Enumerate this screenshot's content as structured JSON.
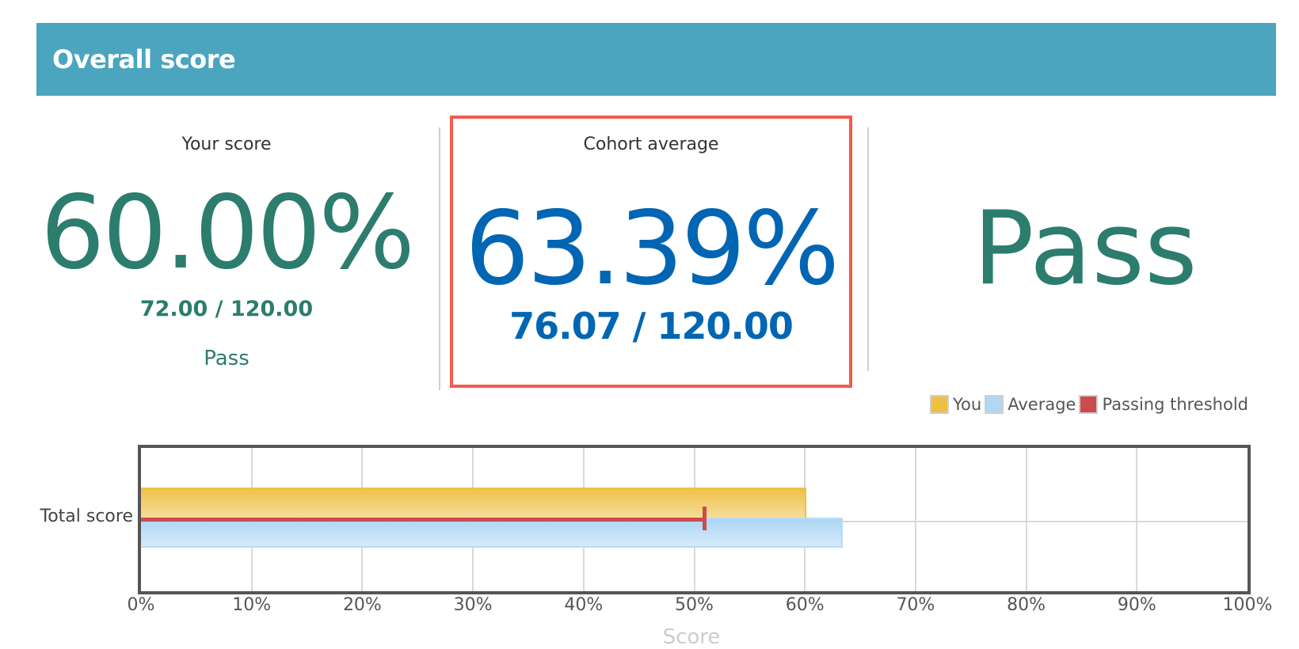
{
  "header": {
    "title": "Overall score"
  },
  "your_score": {
    "label": "Your score",
    "percent": "60.00%",
    "fraction": "72.00 / 120.00",
    "status": "Pass"
  },
  "cohort_average": {
    "label": "Cohort average",
    "percent": "63.39%",
    "fraction": "76.07 / 120.00"
  },
  "result": {
    "status": "Pass"
  },
  "colors": {
    "header": "#4BA5BE",
    "you": "#EEC043",
    "average": "#B0D8F5",
    "threshold": "#CC4B4B",
    "highlight_box": "#F45B4E",
    "your_score_text": "#2C7D6E",
    "cohort_text": "#0066B3"
  },
  "legend": [
    {
      "label": "You",
      "color": "#EEC043"
    },
    {
      "label": "Average",
      "color": "#B0D8F5"
    },
    {
      "label": "Passing threshold",
      "color": "#CC4B4B"
    }
  ],
  "chart_data": {
    "type": "bar",
    "orientation": "horizontal",
    "title": "",
    "categories": [
      "Total score"
    ],
    "series": [
      {
        "name": "You",
        "values": [
          60.0
        ],
        "color": "#EEC043"
      },
      {
        "name": "Average",
        "values": [
          63.39
        ],
        "color": "#B0D8F5"
      }
    ],
    "threshold": {
      "name": "Passing threshold",
      "value": 51,
      "color": "#CC4B4B"
    },
    "xlabel": "Score",
    "ylabel": "",
    "xlim": [
      0,
      100
    ],
    "xticks": [
      "0%",
      "10%",
      "20%",
      "30%",
      "40%",
      "50%",
      "60%",
      "70%",
      "80%",
      "90%",
      "100%"
    ],
    "grid": true,
    "legend_position": "top-right"
  }
}
